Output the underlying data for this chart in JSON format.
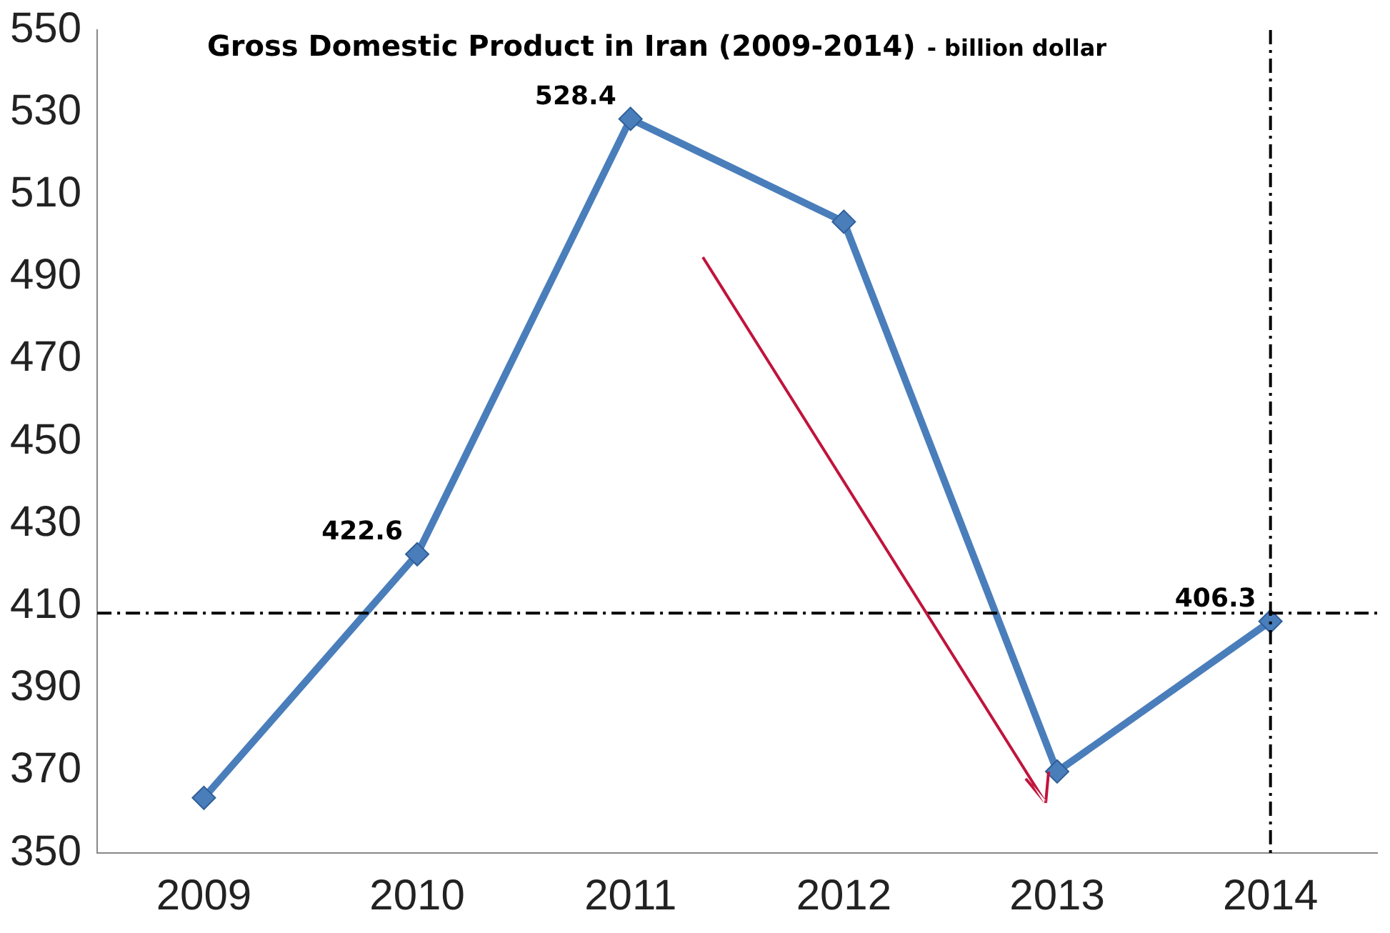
{
  "chart_data": {
    "type": "line",
    "title": "Gross Domestic Product in Iran (2009-2014)",
    "subtitle": "- billion dollar",
    "categories": [
      "2009",
      "2010",
      "2011",
      "2012",
      "2013",
      "2014"
    ],
    "series": [
      {
        "color": "#4a7ebb",
        "values": [
          363.4,
          422.6,
          528.4,
          503.4,
          369.8,
          406.3
        ],
        "value_labels": [
          null,
          "422.6",
          "528.4",
          null,
          null,
          "406.3"
        ]
      }
    ],
    "ylim": [
      350,
      550
    ],
    "yticks": [
      350,
      370,
      390,
      410,
      430,
      450,
      470,
      490,
      510,
      530,
      550
    ],
    "grid": false,
    "legend": false,
    "marker": "diamond",
    "line_style": "solid",
    "ref_lines": [
      {
        "axis": "y",
        "value": 408.3,
        "color": "#000000",
        "line_style": "dashdot"
      },
      {
        "axis": "x",
        "value": "2014",
        "color": "#000000",
        "line_style": "dashdot"
      }
    ]
  }
}
